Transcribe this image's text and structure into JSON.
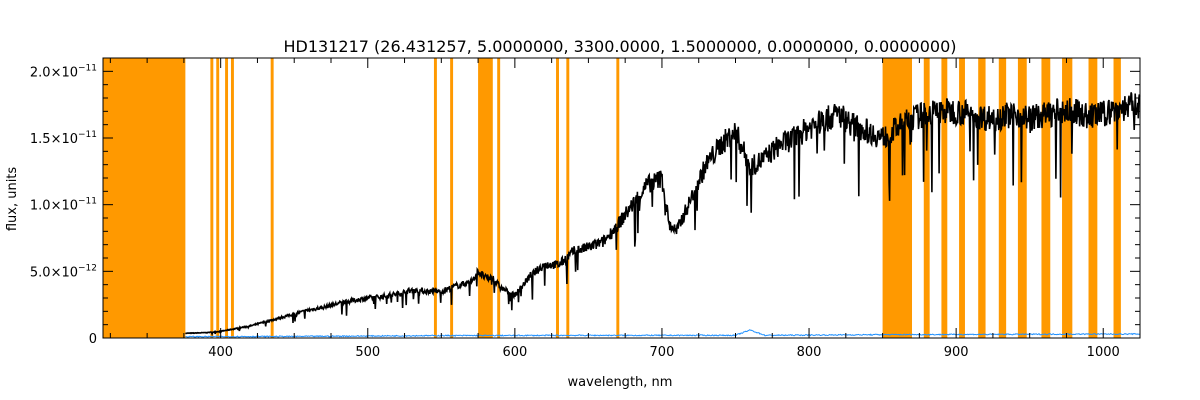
{
  "chart_data": {
    "type": "line",
    "title": "HD131217   (26.431257, 5.0000000, 3300.0000, 1.5000000, 0.0000000, 0.0000000)",
    "xlabel": "wavelength, nm",
    "ylabel": "flux, units",
    "xlim": [
      320,
      1025
    ],
    "ylim": [
      0,
      2.1e-11
    ],
    "x_ticks": [
      400,
      500,
      600,
      700,
      800,
      900,
      1000
    ],
    "x_tick_labels": [
      "400",
      "500",
      "600",
      "700",
      "800",
      "900",
      "1000"
    ],
    "y_ticks": [
      0,
      5e-12,
      1e-11,
      1.5e-11,
      2e-11
    ],
    "y_tick_labels": [
      {
        "mant": "0",
        "exp": ""
      },
      {
        "mant": "5.0×10",
        "exp": "−12"
      },
      {
        "mant": "1.0×10",
        "exp": "−11"
      },
      {
        "mant": "1.5×10",
        "exp": "−11"
      },
      {
        "mant": "2.0×10",
        "exp": "−11"
      }
    ],
    "grid": false,
    "colors": {
      "flux": "#000000",
      "error": "#1e90ff",
      "mask": "#ff9900"
    },
    "masked_regions": [
      [
        320,
        376
      ],
      [
        393,
        395
      ],
      [
        397,
        399
      ],
      [
        403,
        405
      ],
      [
        407,
        409
      ],
      [
        434,
        436
      ],
      [
        545,
        547
      ],
      [
        556,
        558
      ],
      [
        575,
        585
      ],
      [
        588,
        590
      ],
      [
        628,
        630
      ],
      [
        635,
        637
      ],
      [
        669,
        671
      ],
      [
        850,
        870
      ],
      [
        878,
        882
      ],
      [
        890,
        894
      ],
      [
        902,
        906
      ],
      [
        915,
        920
      ],
      [
        929,
        934
      ],
      [
        942,
        948
      ],
      [
        958,
        964
      ],
      [
        972,
        979
      ],
      [
        990,
        996
      ],
      [
        1007,
        1012
      ]
    ],
    "series": [
      {
        "name": "",
        "kind": "flux",
        "x": [
          376,
          390,
          400,
          410,
          420,
          430,
          440,
          450,
          460,
          470,
          480,
          490,
          500,
          510,
          520,
          530,
          540,
          550,
          560,
          570,
          575,
          580,
          585,
          590,
          600,
          610,
          620,
          630,
          640,
          650,
          660,
          670,
          680,
          690,
          700,
          705,
          710,
          720,
          730,
          740,
          750,
          760,
          770,
          780,
          790,
          800,
          810,
          820,
          830,
          840,
          850,
          870,
          880,
          890,
          900,
          910,
          920,
          930,
          940,
          950,
          960,
          970,
          980,
          990,
          1000,
          1010,
          1020,
          1025
        ],
        "y": [
          3.5e-13,
          4e-13,
          5e-13,
          7e-13,
          9e-13,
          1.2e-12,
          1.5e-12,
          1.8e-12,
          2.1e-12,
          2.3e-12,
          2.6e-12,
          2.8e-12,
          3e-12,
          3.1e-12,
          3.3e-12,
          3.6e-12,
          3.5e-12,
          3.5e-12,
          3.9e-12,
          4.2e-12,
          5e-12,
          4.5e-12,
          4.5e-12,
          3.8e-12,
          3.2e-12,
          4.6e-12,
          5.5e-12,
          5.5e-12,
          6.5e-12,
          6.8e-12,
          7.2e-12,
          8.5e-12,
          1e-11,
          1.15e-11,
          1.2e-11,
          8.5e-12,
          8e-12,
          1.05e-11,
          1.3e-11,
          1.45e-11,
          1.55e-11,
          1.28e-11,
          1.35e-11,
          1.45e-11,
          1.5e-11,
          1.58e-11,
          1.63e-11,
          1.68e-11,
          1.6e-11,
          1.55e-11,
          1.5e-11,
          1.65e-11,
          1.68e-11,
          1.7e-11,
          1.7e-11,
          1.68e-11,
          1.65e-11,
          1.66e-11,
          1.68e-11,
          1.65e-11,
          1.67e-11,
          1.7e-11,
          1.7e-11,
          1.66e-11,
          1.68e-11,
          1.72e-11,
          1.74e-11,
          1.75e-11
        ]
      },
      {
        "name": "",
        "kind": "error",
        "x": [
          376,
          450,
          550,
          650,
          750,
          760,
          770,
          850,
          950,
          1025
        ],
        "y": [
          1e-13,
          1.2e-13,
          1.8e-13,
          2e-13,
          2e-13,
          6e-13,
          2e-13,
          2.5e-13,
          2.8e-13,
          3e-13
        ]
      }
    ]
  }
}
